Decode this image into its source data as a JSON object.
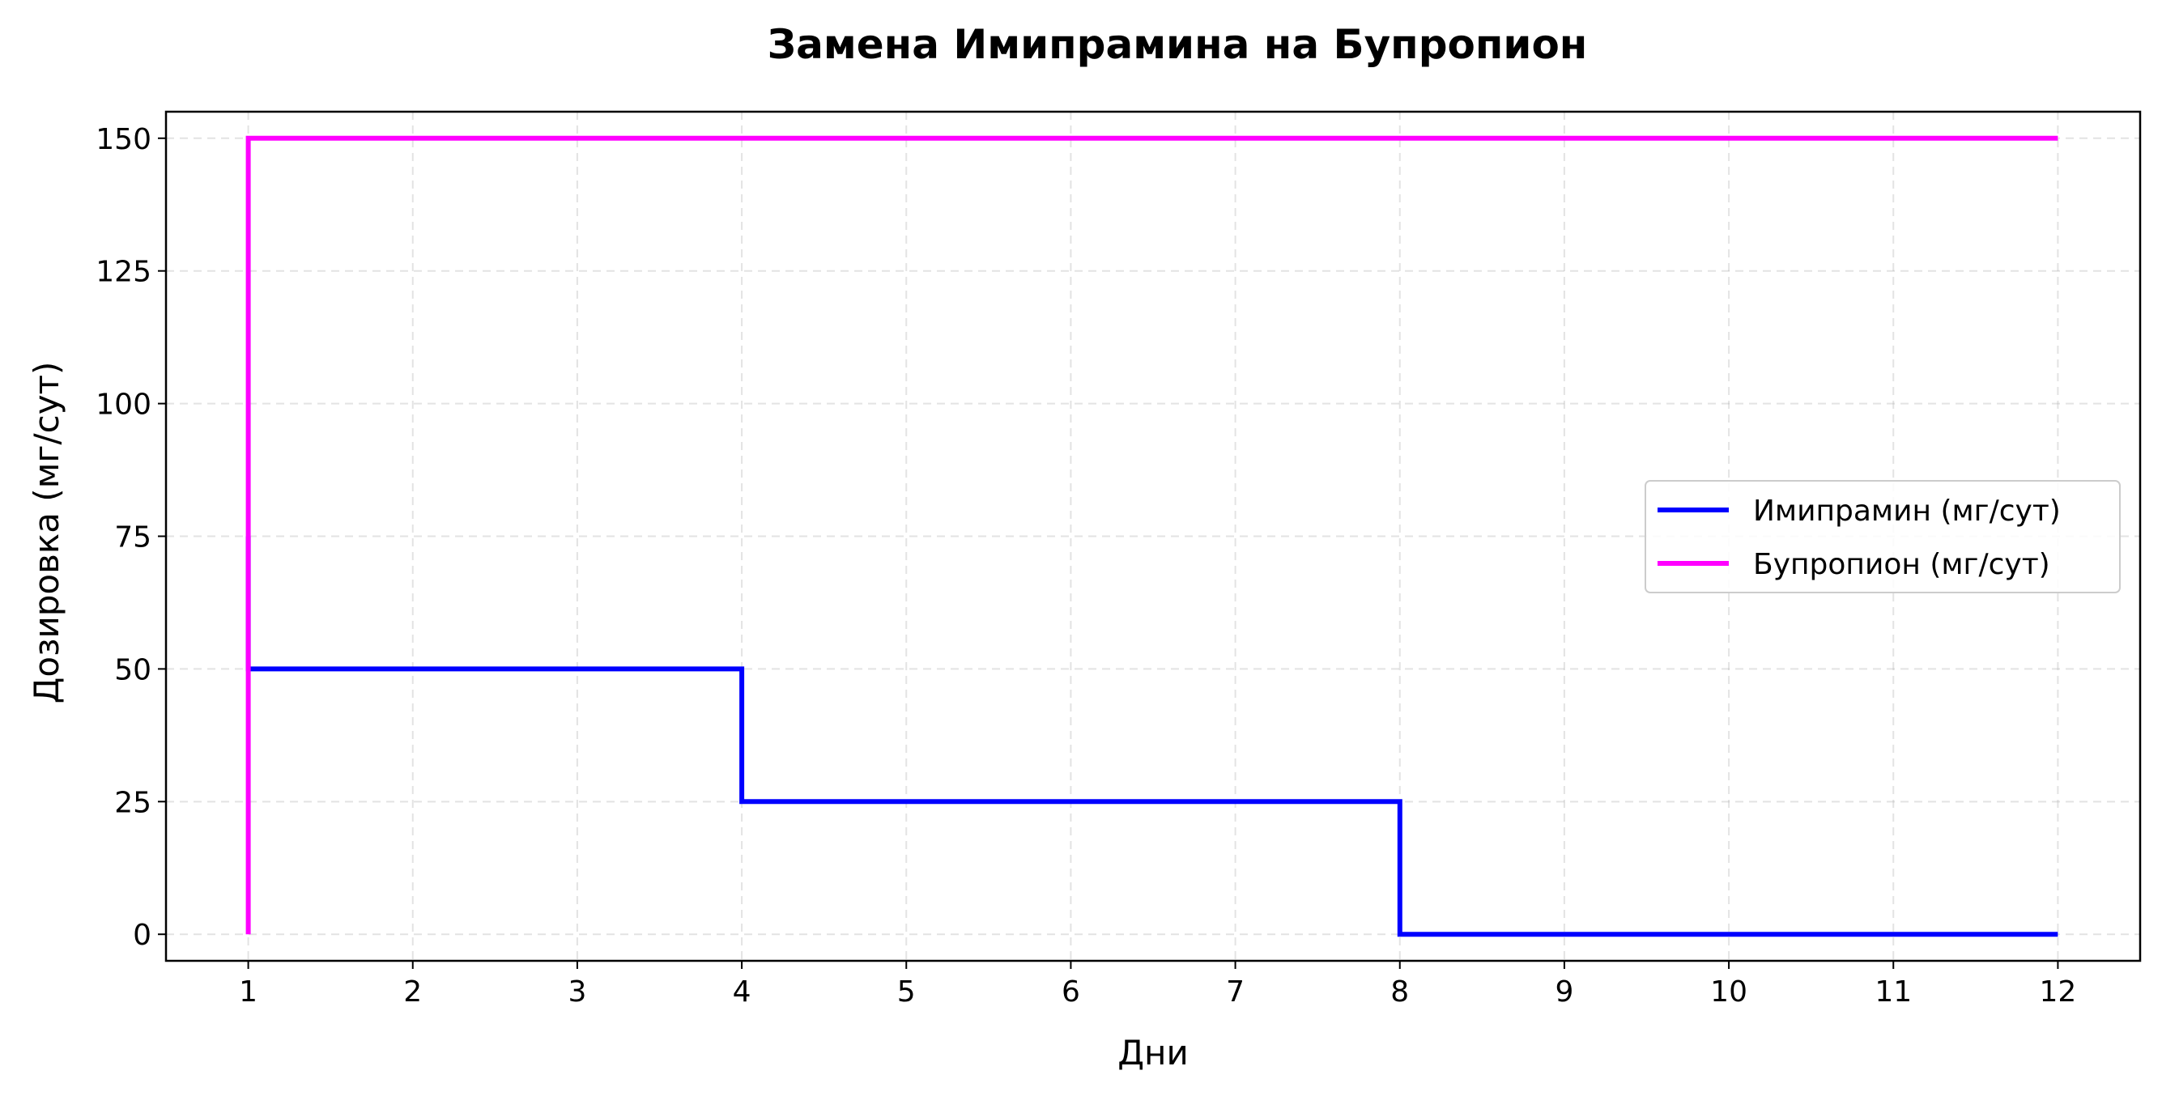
{
  "chart_data": {
    "type": "line",
    "title": "Замена Имипрамина на Бупропион",
    "xlabel": "Дни",
    "ylabel": "Дозировка (мг/сут)",
    "xlim": [
      0.5,
      12.5
    ],
    "ylim": [
      -5,
      155
    ],
    "xticks": [
      1,
      2,
      3,
      4,
      5,
      6,
      7,
      8,
      9,
      10,
      11,
      12
    ],
    "yticks": [
      0,
      25,
      50,
      75,
      100,
      125,
      150
    ],
    "grid": true,
    "legend_position": "center-right",
    "series": [
      {
        "name": "Имипрамин (мг/сут)",
        "color": "#0000ff",
        "style": "step",
        "points": [
          [
            1,
            75
          ],
          [
            1,
            50
          ],
          [
            4,
            50
          ],
          [
            4,
            25
          ],
          [
            8,
            25
          ],
          [
            8,
            0
          ],
          [
            12,
            0
          ]
        ]
      },
      {
        "name": "Бупропион (мг/сут)",
        "color": "#ff00ff",
        "style": "step",
        "points": [
          [
            1,
            0
          ],
          [
            1,
            150
          ],
          [
            12,
            150
          ]
        ]
      }
    ]
  }
}
